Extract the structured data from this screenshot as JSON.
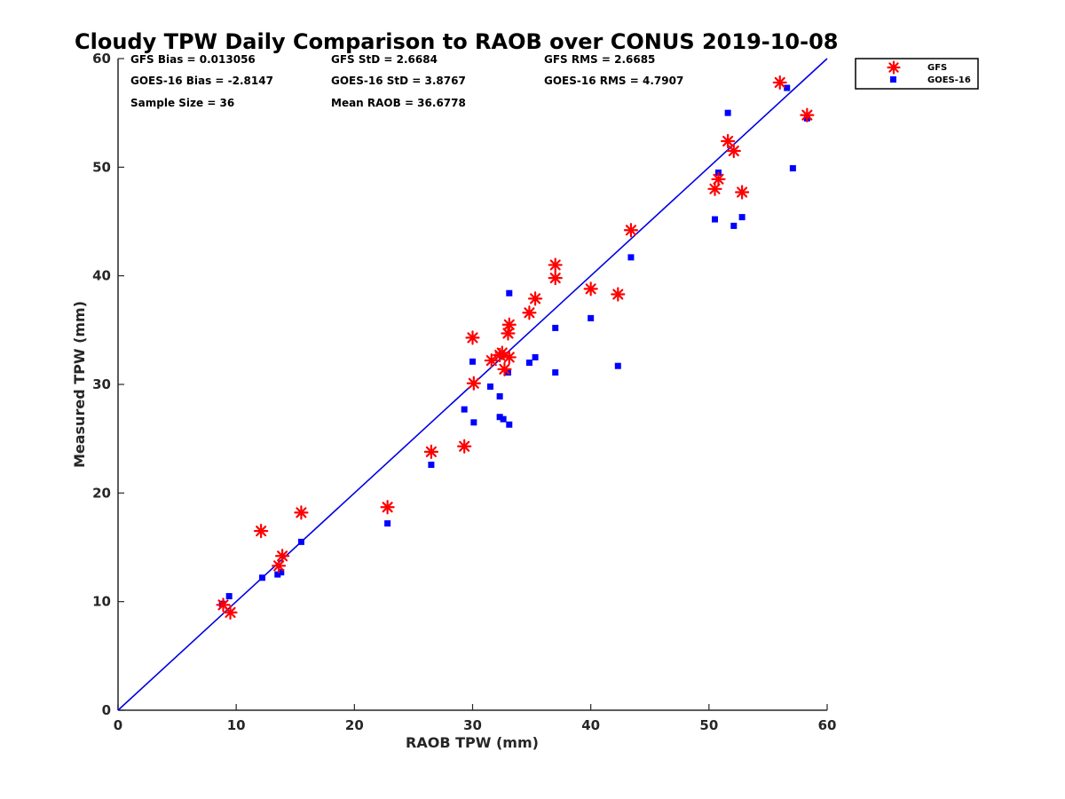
{
  "chart_data": {
    "type": "scatter",
    "title": "Cloudy TPW Daily Comparison to RAOB over CONUS 2019-10-08",
    "xlabel": "RAOB TPW (mm)",
    "ylabel": "Measured TPW (mm)",
    "xlim": [
      0,
      60
    ],
    "ylim": [
      0,
      60
    ],
    "xticks": [
      "0",
      "10",
      "20",
      "30",
      "40",
      "50",
      "60"
    ],
    "yticks": [
      "0",
      "10",
      "20",
      "30",
      "40",
      "50",
      "60"
    ],
    "grid": false,
    "legend": "top-right, outside plot",
    "reference_line": {
      "x": [
        0,
        60
      ],
      "y": [
        0,
        60
      ],
      "color": "#0000e6"
    },
    "stats": {
      "gfs_bias": "GFS Bias = 0.013056",
      "gfs_std": "GFS StD = 2.6684",
      "gfs_rms": "GFS RMS = 2.6685",
      "goes_bias": "GOES-16 Bias = -2.8147",
      "goes_std": "GOES-16 StD = 3.8767",
      "goes_rms": "GOES-16 RMS = 4.7907",
      "sample_size": "Sample Size = 36",
      "mean_raob": "Mean RAOB = 36.6778"
    },
    "series": [
      {
        "name": "GFS",
        "marker": "asterisk",
        "color": "#ff0000",
        "points": [
          [
            8.9,
            9.7
          ],
          [
            9.5,
            9.0
          ],
          [
            12.1,
            16.5
          ],
          [
            13.6,
            13.3
          ],
          [
            13.9,
            14.2
          ],
          [
            15.5,
            18.2
          ],
          [
            22.8,
            18.7
          ],
          [
            26.5,
            23.8
          ],
          [
            29.3,
            24.3
          ],
          [
            30.0,
            34.3
          ],
          [
            30.1,
            30.1
          ],
          [
            31.6,
            32.2
          ],
          [
            32.3,
            32.7
          ],
          [
            32.5,
            32.9
          ],
          [
            32.7,
            31.4
          ],
          [
            33.0,
            34.7
          ],
          [
            33.1,
            35.5
          ],
          [
            33.1,
            32.5
          ],
          [
            34.8,
            36.6
          ],
          [
            35.3,
            37.9
          ],
          [
            37.0,
            41.0
          ],
          [
            37.0,
            39.8
          ],
          [
            40.0,
            38.8
          ],
          [
            42.3,
            38.3
          ],
          [
            43.4,
            44.2
          ],
          [
            50.5,
            48.0
          ],
          [
            50.8,
            48.9
          ],
          [
            51.6,
            52.4
          ],
          [
            52.1,
            51.5
          ],
          [
            52.8,
            47.7
          ],
          [
            56.0,
            57.8
          ],
          [
            58.3,
            54.8
          ]
        ]
      },
      {
        "name": "GOES-16",
        "marker": "square",
        "color": "#0000ff",
        "points": [
          [
            8.8,
            9.8
          ],
          [
            9.4,
            10.5
          ],
          [
            12.2,
            12.2
          ],
          [
            13.5,
            12.5
          ],
          [
            13.8,
            12.7
          ],
          [
            15.5,
            15.5
          ],
          [
            22.8,
            17.2
          ],
          [
            26.5,
            22.6
          ],
          [
            29.3,
            27.7
          ],
          [
            30.0,
            32.1
          ],
          [
            30.1,
            26.5
          ],
          [
            31.5,
            29.8
          ],
          [
            32.3,
            28.9
          ],
          [
            32.3,
            27.0
          ],
          [
            32.6,
            26.8
          ],
          [
            33.0,
            31.1
          ],
          [
            33.1,
            26.3
          ],
          [
            33.1,
            38.4
          ],
          [
            34.8,
            32.0
          ],
          [
            35.3,
            32.5
          ],
          [
            37.0,
            35.2
          ],
          [
            37.0,
            31.1
          ],
          [
            40.0,
            36.1
          ],
          [
            42.3,
            31.7
          ],
          [
            43.4,
            41.7
          ],
          [
            50.5,
            45.2
          ],
          [
            50.8,
            49.5
          ],
          [
            51.6,
            55.0
          ],
          [
            52.1,
            44.6
          ],
          [
            52.8,
            45.4
          ],
          [
            56.6,
            57.3
          ],
          [
            57.1,
            49.9
          ],
          [
            58.3,
            54.5
          ]
        ]
      }
    ]
  }
}
